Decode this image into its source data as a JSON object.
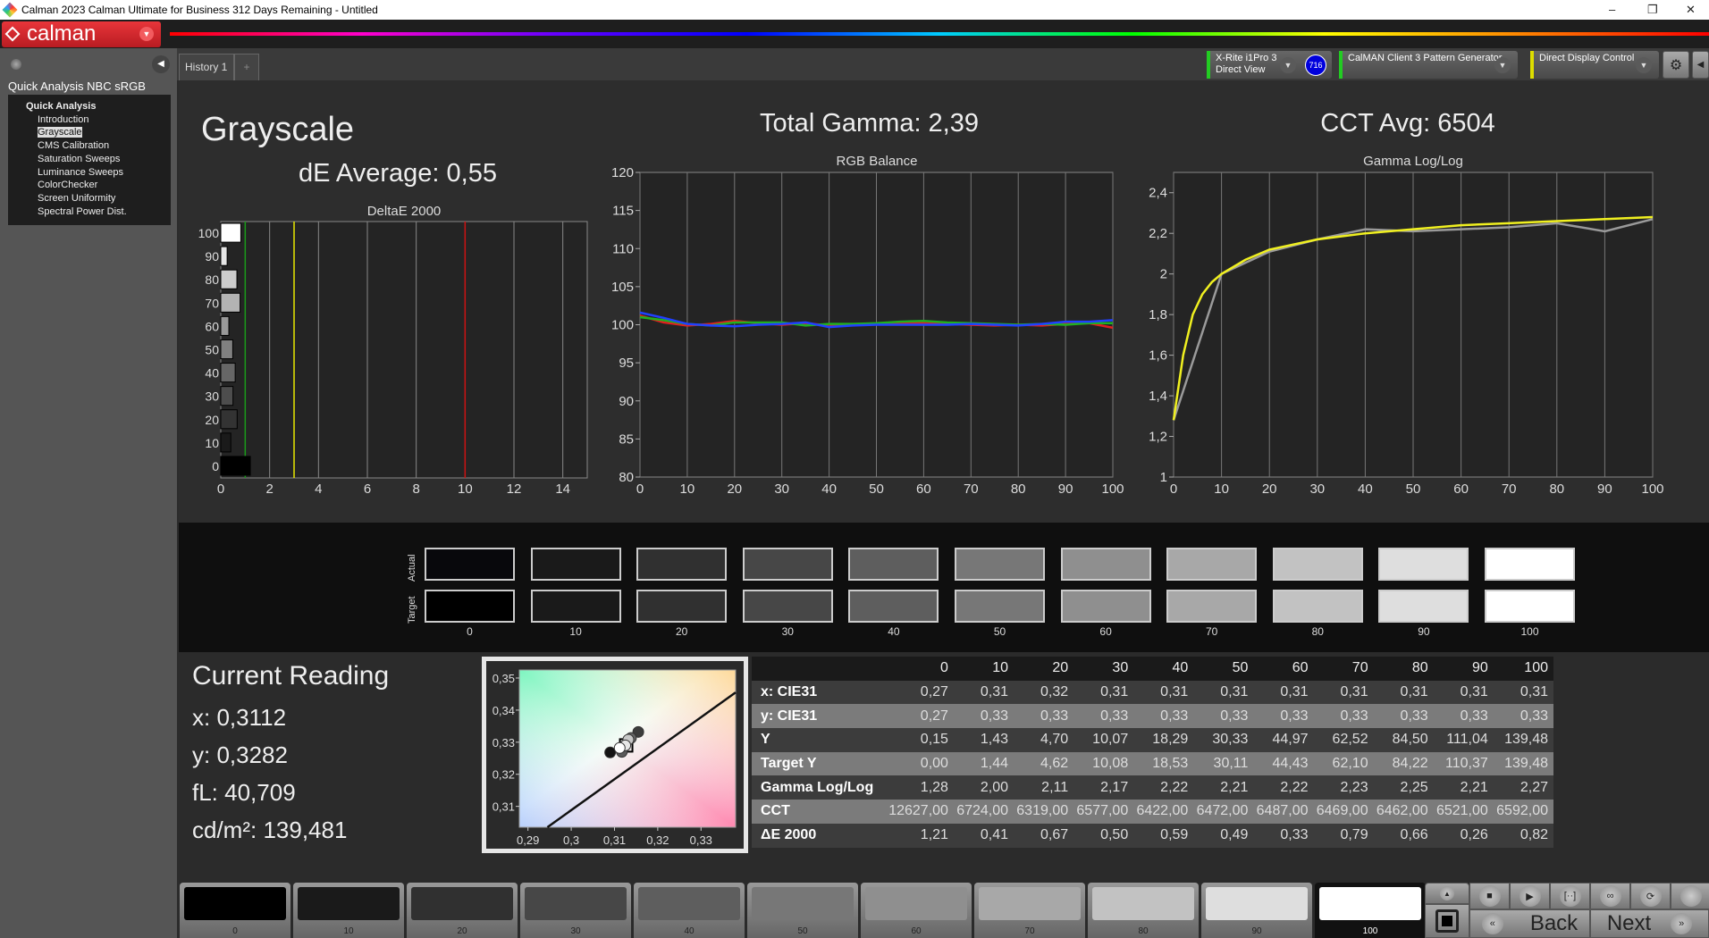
{
  "window": {
    "title": "Calman 2023 Calman Ultimate for Business 312 Days Remaining  - Untitled",
    "min": "–",
    "restore": "❐",
    "close": "✕"
  },
  "logo": {
    "text": "calman"
  },
  "sidebar": {
    "title": "Quick Analysis NBC sRGB",
    "group": "Quick Analysis",
    "items": [
      {
        "label": "Introduction"
      },
      {
        "label": "Grayscale",
        "selected": true
      },
      {
        "label": "CMS Calibration"
      },
      {
        "label": "Saturation Sweeps"
      },
      {
        "label": "Luminance Sweeps"
      },
      {
        "label": "ColorChecker"
      },
      {
        "label": "Screen Uniformity"
      },
      {
        "label": "Spectral Power Dist."
      }
    ]
  },
  "tabs": {
    "history": "History 1",
    "add": "+"
  },
  "toolbar": {
    "meter": {
      "line1": "X-Rite i1Pro 3",
      "line2": "Direct View",
      "badge": "716",
      "status_color": "#22cc22"
    },
    "generator": {
      "label": "CalMAN Client 3 Pattern Generator",
      "status_color": "#22cc22"
    },
    "display": {
      "label": "Direct Display Control",
      "status_color": "#dddd00"
    }
  },
  "page": {
    "title": "Grayscale",
    "de_average": "dE Average: 0,55",
    "total_gamma": "Total Gamma: 2,39",
    "cct_avg": "CCT Avg: 6504"
  },
  "chart_data": [
    {
      "type": "bar",
      "title": "DeltaE 2000",
      "orientation": "horizontal",
      "categories": [
        "0",
        "10",
        "20",
        "30",
        "40",
        "50",
        "60",
        "70",
        "80",
        "90",
        "100"
      ],
      "values": [
        1.21,
        0.41,
        0.67,
        0.5,
        0.59,
        0.49,
        0.33,
        0.79,
        0.66,
        0.26,
        0.82
      ],
      "xlim": [
        0,
        15
      ],
      "xticks": [
        "0",
        "2",
        "4",
        "6",
        "8",
        "10",
        "12",
        "14"
      ],
      "threshold_lines": [
        {
          "value": 1,
          "color": "#1a9a1a"
        },
        {
          "value": 3,
          "color": "#e8e800"
        },
        {
          "value": 10,
          "color": "#cc1111"
        }
      ],
      "grid": true
    },
    {
      "type": "line",
      "title": "RGB Balance",
      "x": [
        0,
        5,
        10,
        15,
        20,
        25,
        30,
        35,
        40,
        45,
        50,
        55,
        60,
        65,
        70,
        75,
        80,
        85,
        90,
        95,
        100
      ],
      "ylim": [
        80,
        120
      ],
      "yticks": [
        "80",
        "85",
        "90",
        "95",
        "100",
        "105",
        "110",
        "115",
        "120"
      ],
      "xticks": [
        "0",
        "10",
        "20",
        "30",
        "40",
        "50",
        "60",
        "70",
        "80",
        "90",
        "100"
      ],
      "grid": true,
      "series": [
        {
          "color": "#e02020",
          "values": [
            101.2,
            100.3,
            99.9,
            100.1,
            100.5,
            100.2,
            100.0,
            100.2,
            99.9,
            100.0,
            100.1,
            100.2,
            100.2,
            100.1,
            100.0,
            99.9,
            100.0,
            99.9,
            100.1,
            100.2,
            99.6
          ]
        },
        {
          "color": "#20b020",
          "values": [
            101.0,
            100.6,
            100.1,
            99.9,
            100.3,
            100.3,
            100.3,
            99.9,
            100.1,
            100.1,
            100.2,
            100.4,
            100.5,
            100.3,
            100.2,
            100.1,
            100.0,
            100.1,
            100.0,
            100.2,
            100.2
          ]
        },
        {
          "color": "#2040ff",
          "values": [
            101.6,
            100.9,
            100.1,
            99.9,
            99.8,
            100.0,
            100.1,
            100.3,
            99.7,
            99.9,
            100.0,
            100.0,
            100.0,
            100.0,
            100.1,
            100.0,
            99.9,
            100.1,
            100.4,
            100.4,
            100.6
          ]
        }
      ]
    },
    {
      "type": "line",
      "title": "Gamma Log/Log",
      "x": [
        0,
        10,
        20,
        30,
        40,
        50,
        60,
        70,
        80,
        90,
        100
      ],
      "ylim": [
        1,
        2.5
      ],
      "yticks": [
        "1",
        "1,2",
        "1,4",
        "1,6",
        "1,8",
        "2",
        "2,2",
        "2,4"
      ],
      "xticks": [
        "0",
        "10",
        "20",
        "30",
        "40",
        "50",
        "60",
        "70",
        "80",
        "90",
        "100"
      ],
      "grid": true,
      "series": [
        {
          "color": "#9a9a9a",
          "values": [
            1.28,
            2.0,
            2.11,
            2.17,
            2.22,
            2.21,
            2.22,
            2.23,
            2.25,
            2.21,
            2.27
          ]
        },
        {
          "color": "#f0f020",
          "x": [
            0,
            2,
            4,
            6,
            8,
            10,
            15,
            20,
            30,
            40,
            50,
            60,
            70,
            80,
            90,
            100
          ],
          "values": [
            1.28,
            1.6,
            1.8,
            1.9,
            1.96,
            2.0,
            2.07,
            2.12,
            2.17,
            2.2,
            2.22,
            2.24,
            2.25,
            2.26,
            2.27,
            2.28
          ]
        }
      ]
    },
    {
      "type": "scatter",
      "title": "",
      "xlim": [
        0.288,
        0.338
      ],
      "ylim": [
        0.3035,
        0.3525
      ],
      "xticks": [
        "0,29",
        "0,3",
        "0,31",
        "0,32",
        "0,33"
      ],
      "yticks": [
        "0,31",
        "0,32",
        "0,33",
        "0,34",
        "0,35"
      ],
      "points": [
        {
          "x": 0.309,
          "y": 0.3268,
          "gray": 20
        },
        {
          "x": 0.3117,
          "y": 0.327,
          "gray": 90
        },
        {
          "x": 0.3155,
          "y": 0.3332,
          "gray": 60
        },
        {
          "x": 0.3138,
          "y": 0.3313,
          "gray": 100
        },
        {
          "x": 0.3132,
          "y": 0.3308,
          "gray": 200
        },
        {
          "x": 0.3125,
          "y": 0.329,
          "gray": 230
        },
        {
          "x": 0.3112,
          "y": 0.3282,
          "gray": 255
        }
      ],
      "target": {
        "x": 0.3127,
        "y": 0.329
      },
      "planckian": [
        [
          0.2945,
          0.3035
        ],
        [
          0.338,
          0.3455
        ]
      ]
    }
  ],
  "swatches": {
    "actual_label": "Actual",
    "target_label": "Target",
    "levels": [
      "0",
      "10",
      "20",
      "30",
      "40",
      "50",
      "60",
      "70",
      "80",
      "90",
      "100"
    ],
    "actual_colors": [
      "#08080c",
      "#1a1a1a",
      "#303030",
      "#474747",
      "#5e5e5e",
      "#777777",
      "#8f8f8f",
      "#a8a8a8",
      "#c2c2c2",
      "#dedede",
      "#ffffff"
    ],
    "target_colors": [
      "#000000",
      "#1a1a1a",
      "#303030",
      "#474747",
      "#5e5e5e",
      "#777777",
      "#8f8f8f",
      "#a8a8a8",
      "#c2c2c2",
      "#dedede",
      "#ffffff"
    ]
  },
  "reading": {
    "title": "Current Reading",
    "x": "x: 0,3112",
    "y": "y: 0,3282",
    "fl": "fL: 40,709",
    "cdm2": "cd/m²: 139,481"
  },
  "table": {
    "headers": [
      "",
      "0",
      "10",
      "20",
      "30",
      "40",
      "50",
      "60",
      "70",
      "80",
      "90",
      "100"
    ],
    "rows": [
      [
        "x: CIE31",
        "0,27",
        "0,31",
        "0,32",
        "0,31",
        "0,31",
        "0,31",
        "0,31",
        "0,31",
        "0,31",
        "0,31",
        "0,31"
      ],
      [
        "y: CIE31",
        "0,27",
        "0,33",
        "0,33",
        "0,33",
        "0,33",
        "0,33",
        "0,33",
        "0,33",
        "0,33",
        "0,33",
        "0,33"
      ],
      [
        "Y",
        "0,15",
        "1,43",
        "4,70",
        "10,07",
        "18,29",
        "30,33",
        "44,97",
        "62,52",
        "84,50",
        "111,04",
        "139,48"
      ],
      [
        "Target Y",
        "0,00",
        "1,44",
        "4,62",
        "10,08",
        "18,53",
        "30,11",
        "44,43",
        "62,10",
        "84,22",
        "110,37",
        "139,48"
      ],
      [
        "Gamma Log/Log",
        "1,28",
        "2,00",
        "2,11",
        "2,17",
        "2,22",
        "2,21",
        "2,22",
        "2,23",
        "2,25",
        "2,21",
        "2,27"
      ],
      [
        "CCT",
        "12627,00",
        "6724,00",
        "6319,00",
        "6577,00",
        "6422,00",
        "6472,00",
        "6487,00",
        "6469,00",
        "6462,00",
        "6521,00",
        "6592,00"
      ],
      [
        "ΔE 2000",
        "1,21",
        "0,41",
        "0,67",
        "0,50",
        "0,59",
        "0,49",
        "0,33",
        "0,79",
        "0,66",
        "0,26",
        "0,82"
      ]
    ]
  },
  "bottom": {
    "levels": [
      "0",
      "10",
      "20",
      "30",
      "40",
      "50",
      "60",
      "70",
      "80",
      "90",
      "100"
    ],
    "colors": [
      "#000000",
      "#1a1a1a",
      "#303030",
      "#474747",
      "#5e5e5e",
      "#777777",
      "#8f8f8f",
      "#a8a8a8",
      "#c2c2c2",
      "#dedede",
      "#ffffff"
    ],
    "active": "100",
    "back": "Back",
    "next": "Next",
    "back_icon": "«",
    "next_icon": "»"
  }
}
